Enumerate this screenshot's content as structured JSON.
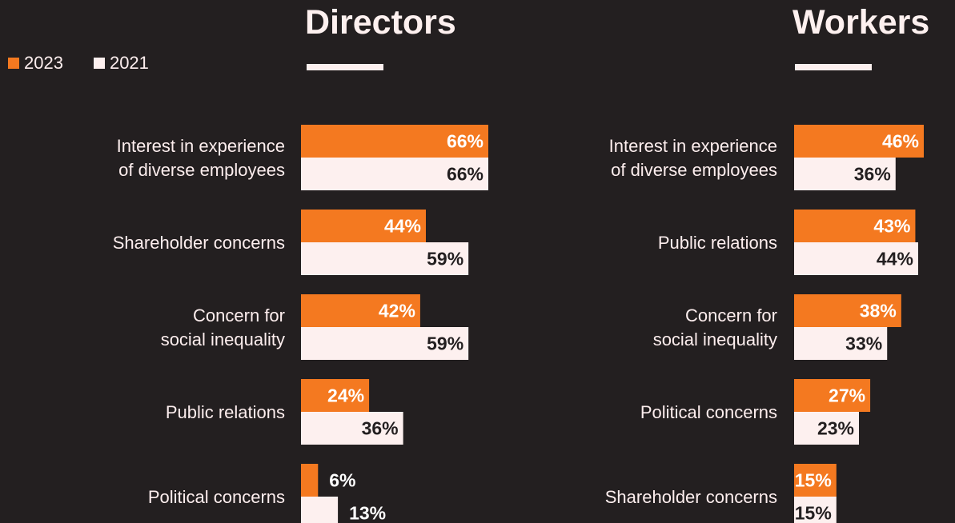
{
  "legend": {
    "items": [
      {
        "label": "2023",
        "color": "#f47920"
      },
      {
        "label": "2021",
        "color": "#fdf0ef"
      }
    ]
  },
  "chart_data": [
    {
      "type": "bar",
      "orientation": "horizontal",
      "title": "Directors",
      "categories": [
        [
          "Interest in experience",
          "of diverse employees"
        ],
        [
          "Shareholder concerns"
        ],
        [
          "Concern for",
          "social inequality"
        ],
        [
          "Public relations"
        ],
        [
          "Political concerns"
        ]
      ],
      "series": [
        {
          "name": "2023",
          "color": "#f47920",
          "values": [
            66,
            44,
            42,
            24,
            6
          ],
          "labels": [
            "66%",
            "44%",
            "42%",
            "24%",
            "6%"
          ]
        },
        {
          "name": "2021",
          "color": "#fdf0ef",
          "values": [
            66,
            59,
            59,
            36,
            13
          ],
          "labels": [
            "66%",
            "59%",
            "59%",
            "36%",
            "13%"
          ]
        }
      ],
      "xlim": [
        0,
        66
      ]
    },
    {
      "type": "bar",
      "orientation": "horizontal",
      "title": "Workers",
      "categories": [
        [
          "Interest in experience",
          "of diverse employees"
        ],
        [
          "Public relations"
        ],
        [
          "Concern for",
          "social inequality"
        ],
        [
          "Political concerns"
        ],
        [
          "Shareholder concerns"
        ]
      ],
      "series": [
        {
          "name": "2023",
          "color": "#f47920",
          "values": [
            46,
            43,
            38,
            27,
            15
          ],
          "labels": [
            "46%",
            "43%",
            "38%",
            "27%",
            "15%"
          ]
        },
        {
          "name": "2021",
          "color": "#fdf0ef",
          "values": [
            36,
            44,
            33,
            23,
            15
          ],
          "labels": [
            "36%",
            "44%",
            "33%",
            "23%",
            "15%"
          ]
        }
      ],
      "xlim": [
        0,
        46
      ]
    }
  ]
}
